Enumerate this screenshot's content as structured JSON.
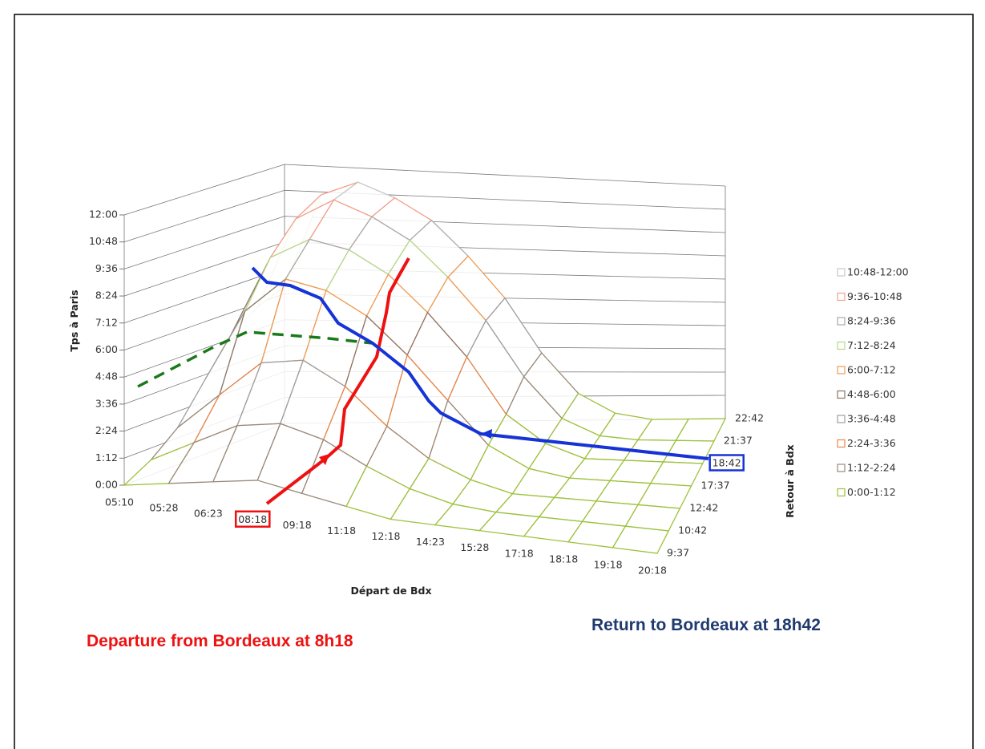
{
  "chart_data": {
    "type": "surface",
    "x_label": "Départ de Bdx",
    "y_label": "Retour à Bdx",
    "z_label": "Tps à Paris",
    "x_categories": [
      "05:10",
      "05:28",
      "06:23",
      "08:18",
      "09:18",
      "11:18",
      "12:18",
      "14:23",
      "15:28",
      "17:18",
      "18:18",
      "19:18",
      "20:18"
    ],
    "y_categories": [
      "9:37",
      "10:42",
      "12:42",
      "17:37",
      "18:42",
      "21:37",
      "22:42"
    ],
    "z": [
      [
        0,
        20,
        40,
        60,
        40,
        20,
        0,
        0,
        0,
        0,
        0,
        0,
        0
      ],
      [
        40,
        100,
        160,
        180,
        150,
        90,
        40,
        10,
        0,
        0,
        0,
        0,
        0
      ],
      [
        100,
        200,
        300,
        320,
        260,
        160,
        80,
        30,
        0,
        0,
        0,
        0,
        0
      ],
      [
        200,
        400,
        500,
        480,
        420,
        320,
        200,
        80,
        20,
        0,
        0,
        0,
        0
      ],
      [
        300,
        520,
        580,
        560,
        500,
        400,
        280,
        120,
        40,
        0,
        0,
        0,
        0
      ],
      [
        350,
        600,
        660,
        620,
        560,
        460,
        340,
        180,
        60,
        10,
        0,
        0,
        0
      ],
      [
        380,
        640,
        680,
        640,
        580,
        480,
        360,
        200,
        80,
        20,
        0,
        0,
        0
      ]
    ],
    "zlim": [
      0,
      720
    ],
    "zticks": [
      {
        "value": 0,
        "label": "0:00"
      },
      {
        "value": 72,
        "label": "1:12"
      },
      {
        "value": 144,
        "label": "2:24"
      },
      {
        "value": 216,
        "label": "3:36"
      },
      {
        "value": 288,
        "label": "4:48"
      },
      {
        "value": 360,
        "label": "6:00"
      },
      {
        "value": 432,
        "label": "7:12"
      },
      {
        "value": 504,
        "label": "8:24"
      },
      {
        "value": 576,
        "label": "9:36"
      },
      {
        "value": 648,
        "label": "10:48"
      },
      {
        "value": 720,
        "label": "12:00"
      }
    ],
    "bands": [
      {
        "name": "10:48-12:00",
        "color": "#c8c8c8",
        "from": 648,
        "to": 720
      },
      {
        "name": "9:36-10:48",
        "color": "#f4a08a",
        "from": 576,
        "to": 648
      },
      {
        "name": "8:24-9:36",
        "color": "#a9a9a9",
        "from": 504,
        "to": 576
      },
      {
        "name": "7:12-8:24",
        "color": "#b8d88a",
        "from": 432,
        "to": 504
      },
      {
        "name": "6:00-7:12",
        "color": "#f09a52",
        "from": 360,
        "to": 432
      },
      {
        "name": "4:48-6:00",
        "color": "#8c7464",
        "from": 288,
        "to": 360
      },
      {
        "name": "3:36-4:48",
        "color": "#9e9e9e",
        "from": 216,
        "to": 288
      },
      {
        "name": "2:24-3:36",
        "color": "#e8864a",
        "from": 144,
        "to": 216
      },
      {
        "name": "1:12-2:24",
        "color": "#9a8878",
        "from": 72,
        "to": 144
      },
      {
        "name": "0:00-1:12",
        "color": "#9dc13c",
        "from": 0,
        "to": 72
      }
    ],
    "annotations": [
      "Departure from Bordeaux at 8h18",
      "Return to Bordeaux at 18h42"
    ]
  }
}
